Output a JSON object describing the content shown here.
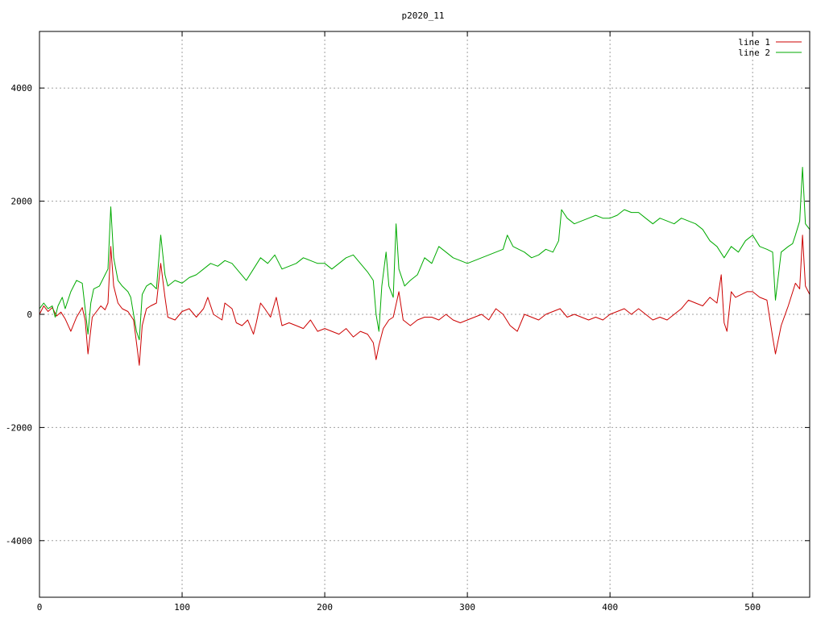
{
  "chart_data": {
    "type": "line",
    "title": "p2020_11",
    "xlabel": "",
    "ylabel": "",
    "xlim": [
      0,
      540
    ],
    "ylim": [
      -5000,
      5000
    ],
    "x_ticks": [
      0,
      100,
      200,
      300,
      400,
      500
    ],
    "y_ticks": [
      -4000,
      -2000,
      0,
      2000,
      4000
    ],
    "x_tick_labels": [
      "0",
      "100",
      "200",
      "300",
      "400",
      "500"
    ],
    "y_tick_labels": [
      "-4000",
      "-2000",
      "0",
      "2000",
      "4000"
    ],
    "grid": true,
    "legend_position": "top-right",
    "series": [
      {
        "name": "line 1",
        "color": "#cc0000",
        "points": [
          [
            0,
            0
          ],
          [
            3,
            150
          ],
          [
            6,
            50
          ],
          [
            9,
            120
          ],
          [
            12,
            -30
          ],
          [
            15,
            40
          ],
          [
            18,
            -80
          ],
          [
            22,
            -300
          ],
          [
            26,
            -50
          ],
          [
            30,
            120
          ],
          [
            32,
            -100
          ],
          [
            34,
            -700
          ],
          [
            37,
            -50
          ],
          [
            40,
            50
          ],
          [
            43,
            150
          ],
          [
            46,
            80
          ],
          [
            48,
            200
          ],
          [
            50,
            1200
          ],
          [
            52,
            500
          ],
          [
            55,
            200
          ],
          [
            58,
            100
          ],
          [
            62,
            50
          ],
          [
            66,
            -100
          ],
          [
            68,
            -500
          ],
          [
            70,
            -900
          ],
          [
            72,
            -200
          ],
          [
            75,
            100
          ],
          [
            78,
            150
          ],
          [
            82,
            200
          ],
          [
            85,
            900
          ],
          [
            88,
            300
          ],
          [
            90,
            -50
          ],
          [
            95,
            -100
          ],
          [
            100,
            50
          ],
          [
            105,
            100
          ],
          [
            110,
            -50
          ],
          [
            115,
            100
          ],
          [
            118,
            300
          ],
          [
            122,
            0
          ],
          [
            128,
            -100
          ],
          [
            130,
            200
          ],
          [
            135,
            100
          ],
          [
            138,
            -150
          ],
          [
            142,
            -200
          ],
          [
            146,
            -100
          ],
          [
            150,
            -350
          ],
          [
            152,
            -150
          ],
          [
            155,
            200
          ],
          [
            158,
            100
          ],
          [
            162,
            -50
          ],
          [
            166,
            300
          ],
          [
            170,
            -200
          ],
          [
            175,
            -150
          ],
          [
            180,
            -200
          ],
          [
            185,
            -250
          ],
          [
            190,
            -100
          ],
          [
            195,
            -300
          ],
          [
            200,
            -250
          ],
          [
            205,
            -300
          ],
          [
            210,
            -350
          ],
          [
            215,
            -250
          ],
          [
            220,
            -400
          ],
          [
            225,
            -300
          ],
          [
            230,
            -350
          ],
          [
            234,
            -500
          ],
          [
            236,
            -800
          ],
          [
            238,
            -550
          ],
          [
            241,
            -250
          ],
          [
            245,
            -100
          ],
          [
            248,
            -50
          ],
          [
            252,
            400
          ],
          [
            255,
            -100
          ],
          [
            260,
            -200
          ],
          [
            265,
            -100
          ],
          [
            270,
            -50
          ],
          [
            275,
            -50
          ],
          [
            280,
            -100
          ],
          [
            285,
            0
          ],
          [
            290,
            -100
          ],
          [
            295,
            -150
          ],
          [
            300,
            -100
          ],
          [
            305,
            -50
          ],
          [
            310,
            0
          ],
          [
            315,
            -100
          ],
          [
            320,
            100
          ],
          [
            325,
            0
          ],
          [
            330,
            -200
          ],
          [
            335,
            -300
          ],
          [
            340,
            0
          ],
          [
            345,
            -50
          ],
          [
            350,
            -100
          ],
          [
            355,
            0
          ],
          [
            360,
            50
          ],
          [
            365,
            100
          ],
          [
            370,
            -50
          ],
          [
            375,
            0
          ],
          [
            380,
            -50
          ],
          [
            385,
            -100
          ],
          [
            390,
            -50
          ],
          [
            395,
            -100
          ],
          [
            400,
            0
          ],
          [
            405,
            50
          ],
          [
            410,
            100
          ],
          [
            415,
            0
          ],
          [
            420,
            100
          ],
          [
            425,
            0
          ],
          [
            430,
            -100
          ],
          [
            435,
            -50
          ],
          [
            440,
            -100
          ],
          [
            445,
            0
          ],
          [
            450,
            100
          ],
          [
            455,
            250
          ],
          [
            460,
            200
          ],
          [
            465,
            150
          ],
          [
            470,
            300
          ],
          [
            475,
            200
          ],
          [
            478,
            700
          ],
          [
            480,
            -150
          ],
          [
            482,
            -300
          ],
          [
            485,
            400
          ],
          [
            488,
            300
          ],
          [
            492,
            350
          ],
          [
            496,
            400
          ],
          [
            500,
            400
          ],
          [
            505,
            300
          ],
          [
            510,
            250
          ],
          [
            514,
            -400
          ],
          [
            516,
            -700
          ],
          [
            520,
            -200
          ],
          [
            525,
            150
          ],
          [
            530,
            550
          ],
          [
            533,
            450
          ],
          [
            535,
            1400
          ],
          [
            537,
            500
          ],
          [
            540,
            350
          ]
        ]
      },
      {
        "name": "line 2",
        "color": "#00aa00",
        "points": [
          [
            0,
            100
          ],
          [
            3,
            200
          ],
          [
            6,
            100
          ],
          [
            9,
            150
          ],
          [
            11,
            -50
          ],
          [
            13,
            150
          ],
          [
            16,
            300
          ],
          [
            18,
            100
          ],
          [
            22,
            400
          ],
          [
            26,
            600
          ],
          [
            30,
            550
          ],
          [
            32,
            100
          ],
          [
            34,
            -350
          ],
          [
            36,
            200
          ],
          [
            38,
            450
          ],
          [
            42,
            500
          ],
          [
            46,
            700
          ],
          [
            48,
            800
          ],
          [
            50,
            1900
          ],
          [
            52,
            1000
          ],
          [
            55,
            600
          ],
          [
            58,
            500
          ],
          [
            62,
            400
          ],
          [
            64,
            300
          ],
          [
            66,
            0
          ],
          [
            68,
            -300
          ],
          [
            70,
            -450
          ],
          [
            72,
            350
          ],
          [
            75,
            500
          ],
          [
            78,
            550
          ],
          [
            82,
            450
          ],
          [
            85,
            1400
          ],
          [
            88,
            700
          ],
          [
            90,
            500
          ],
          [
            95,
            600
          ],
          [
            100,
            550
          ],
          [
            105,
            650
          ],
          [
            110,
            700
          ],
          [
            115,
            800
          ],
          [
            120,
            900
          ],
          [
            125,
            850
          ],
          [
            130,
            950
          ],
          [
            135,
            900
          ],
          [
            140,
            750
          ],
          [
            145,
            600
          ],
          [
            150,
            800
          ],
          [
            155,
            1000
          ],
          [
            160,
            900
          ],
          [
            165,
            1050
          ],
          [
            170,
            800
          ],
          [
            175,
            850
          ],
          [
            180,
            900
          ],
          [
            185,
            1000
          ],
          [
            190,
            950
          ],
          [
            195,
            900
          ],
          [
            200,
            900
          ],
          [
            205,
            800
          ],
          [
            210,
            900
          ],
          [
            215,
            1000
          ],
          [
            220,
            1050
          ],
          [
            225,
            900
          ],
          [
            230,
            750
          ],
          [
            234,
            600
          ],
          [
            236,
            0
          ],
          [
            238,
            -300
          ],
          [
            240,
            500
          ],
          [
            243,
            1100
          ],
          [
            245,
            500
          ],
          [
            248,
            300
          ],
          [
            250,
            1600
          ],
          [
            252,
            800
          ],
          [
            256,
            500
          ],
          [
            260,
            600
          ],
          [
            265,
            700
          ],
          [
            270,
            1000
          ],
          [
            275,
            900
          ],
          [
            280,
            1200
          ],
          [
            285,
            1100
          ],
          [
            290,
            1000
          ],
          [
            295,
            950
          ],
          [
            300,
            900
          ],
          [
            305,
            950
          ],
          [
            310,
            1000
          ],
          [
            315,
            1050
          ],
          [
            320,
            1100
          ],
          [
            325,
            1150
          ],
          [
            328,
            1400
          ],
          [
            332,
            1200
          ],
          [
            336,
            1150
          ],
          [
            340,
            1100
          ],
          [
            345,
            1000
          ],
          [
            350,
            1050
          ],
          [
            355,
            1150
          ],
          [
            360,
            1100
          ],
          [
            364,
            1300
          ],
          [
            366,
            1850
          ],
          [
            370,
            1700
          ],
          [
            375,
            1600
          ],
          [
            380,
            1650
          ],
          [
            385,
            1700
          ],
          [
            390,
            1750
          ],
          [
            395,
            1700
          ],
          [
            400,
            1700
          ],
          [
            405,
            1750
          ],
          [
            410,
            1850
          ],
          [
            415,
            1800
          ],
          [
            420,
            1800
          ],
          [
            425,
            1700
          ],
          [
            430,
            1600
          ],
          [
            435,
            1700
          ],
          [
            440,
            1650
          ],
          [
            445,
            1600
          ],
          [
            450,
            1700
          ],
          [
            455,
            1650
          ],
          [
            460,
            1600
          ],
          [
            465,
            1500
          ],
          [
            470,
            1300
          ],
          [
            475,
            1200
          ],
          [
            480,
            1000
          ],
          [
            485,
            1200
          ],
          [
            490,
            1100
          ],
          [
            495,
            1300
          ],
          [
            500,
            1400
          ],
          [
            505,
            1200
          ],
          [
            510,
            1150
          ],
          [
            514,
            1100
          ],
          [
            516,
            250
          ],
          [
            520,
            1100
          ],
          [
            525,
            1200
          ],
          [
            528,
            1250
          ],
          [
            530,
            1400
          ],
          [
            533,
            1650
          ],
          [
            535,
            2600
          ],
          [
            537,
            1600
          ],
          [
            540,
            1500
          ]
        ]
      }
    ]
  }
}
